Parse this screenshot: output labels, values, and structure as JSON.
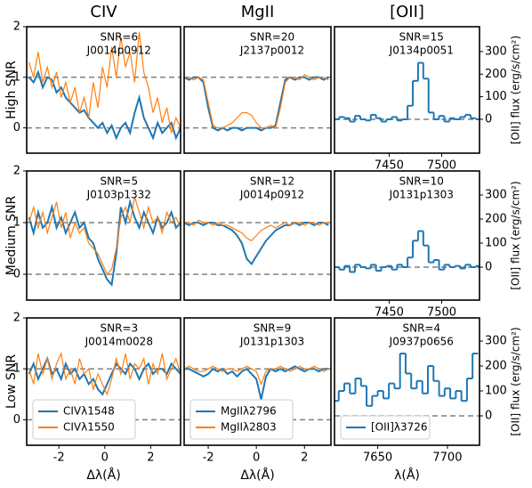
{
  "chart_data": [
    {
      "type": "line",
      "title": "CIV",
      "ylabel": "High SNR",
      "annotations": [
        "SNR=6",
        "J0014p0912"
      ],
      "xlim": [
        -3.4,
        3.3
      ],
      "ylim": [
        -0.5,
        2
      ],
      "yticks": [
        0,
        1,
        2
      ],
      "hlines": [
        0,
        1
      ],
      "x": [
        -3.3,
        -3.1,
        -2.9,
        -2.7,
        -2.5,
        -2.3,
        -2.1,
        -1.9,
        -1.7,
        -1.5,
        -1.3,
        -1.1,
        -0.9,
        -0.7,
        -0.5,
        -0.3,
        -0.1,
        0.1,
        0.3,
        0.5,
        0.7,
        0.9,
        1.1,
        1.3,
        1.5,
        1.7,
        1.9,
        2.1,
        2.3,
        2.5,
        2.7,
        2.9,
        3.1,
        3.3
      ],
      "series": [
        {
          "color": "#1f77b4",
          "values": [
            1.0,
            0.9,
            1.1,
            0.8,
            1.0,
            0.95,
            0.7,
            0.8,
            0.6,
            0.5,
            0.4,
            0.3,
            0.35,
            0.2,
            0.1,
            0.0,
            0.1,
            -0.1,
            0.05,
            -0.2,
            0.0,
            0.1,
            -0.1,
            0.3,
            0.6,
            0.2,
            0.0,
            -0.2,
            0.1,
            -0.1,
            0.0,
            0.1,
            -0.2,
            0.0
          ]
        },
        {
          "color": "#ff7f0e",
          "values": [
            1.3,
            1.0,
            1.5,
            0.9,
            1.2,
            0.8,
            1.1,
            0.6,
            0.9,
            0.5,
            0.8,
            0.3,
            0.6,
            0.2,
            0.9,
            0.4,
            1.2,
            0.8,
            1.6,
            1.0,
            1.8,
            1.2,
            1.5,
            0.9,
            1.9,
            1.1,
            0.8,
            0.3,
            0.6,
            0.1,
            0.4,
            -0.1,
            0.2,
            0.0
          ]
        }
      ]
    },
    {
      "type": "line",
      "title": "MgII",
      "annotations": [
        "SNR=20",
        "J2137p0012"
      ],
      "xlim": [
        -3,
        3.1
      ],
      "ylim": [
        -0.5,
        2
      ],
      "hlines": [
        0,
        1
      ],
      "x": [
        -3.0,
        -2.8,
        -2.6,
        -2.4,
        -2.2,
        -2.0,
        -1.8,
        -1.6,
        -1.4,
        -1.2,
        -1.0,
        -0.8,
        -0.6,
        -0.4,
        -0.2,
        0.0,
        0.2,
        0.4,
        0.6,
        0.8,
        1.0,
        1.2,
        1.4,
        1.6,
        1.8,
        2.0,
        2.2,
        2.4,
        2.6,
        2.8,
        3.0
      ],
      "series": [
        {
          "color": "#1f77b4",
          "values": [
            1.0,
            0.95,
            1.0,
            1.0,
            0.9,
            0.4,
            0.0,
            -0.05,
            0.0,
            -0.05,
            0.0,
            0.0,
            -0.05,
            0.0,
            0.0,
            0.0,
            -0.05,
            0.0,
            0.0,
            0.05,
            0.5,
            0.95,
            1.0,
            0.95,
            1.0,
            1.0,
            0.95,
            1.0,
            1.0,
            0.95,
            1.0
          ]
        },
        {
          "color": "#ff7f0e",
          "values": [
            1.0,
            1.0,
            0.95,
            1.0,
            0.95,
            0.5,
            0.05,
            0.0,
            0.0,
            0.05,
            0.1,
            0.2,
            0.3,
            0.3,
            0.25,
            0.1,
            0.0,
            0.0,
            0.05,
            0.0,
            0.4,
            0.9,
            1.0,
            1.0,
            0.95,
            1.05,
            1.0,
            0.95,
            1.0,
            1.0,
            0.95
          ]
        }
      ]
    },
    {
      "type": "step",
      "title": "[OII]",
      "ylabel": "[OII] flux (erg/s/cm²)",
      "annotations": [
        "SNR=15",
        "J0134p0051"
      ],
      "xlim": [
        7398,
        7536
      ],
      "xticks": [
        7450,
        7500
      ],
      "ylim": [
        -150,
        410
      ],
      "yticks": [
        0,
        100,
        200,
        300
      ],
      "hlines": [
        0
      ],
      "x": [
        7400,
        7405,
        7410,
        7415,
        7420,
        7425,
        7430,
        7435,
        7440,
        7445,
        7450,
        7455,
        7460,
        7465,
        7470,
        7475,
        7480,
        7485,
        7490,
        7495,
        7500,
        7505,
        7510,
        7515,
        7520,
        7525,
        7530,
        7535
      ],
      "series": [
        {
          "color": "#1f77b4",
          "values": [
            0,
            10,
            5,
            -10,
            15,
            0,
            -5,
            20,
            5,
            -10,
            0,
            10,
            -5,
            0,
            60,
            170,
            250,
            180,
            30,
            0,
            15,
            -10,
            5,
            0,
            10,
            20,
            5,
            0
          ]
        }
      ]
    },
    {
      "type": "line",
      "ylabel": "Medium SNR",
      "annotations": [
        "SNR=5",
        "J0103p1332"
      ],
      "xlim": [
        -3.4,
        3.3
      ],
      "ylim": [
        -0.5,
        2
      ],
      "yticks": [
        0,
        1,
        2
      ],
      "hlines": [
        0,
        1
      ],
      "x": [
        -3.3,
        -3.1,
        -2.9,
        -2.7,
        -2.5,
        -2.3,
        -2.1,
        -1.9,
        -1.7,
        -1.5,
        -1.3,
        -1.1,
        -0.9,
        -0.7,
        -0.5,
        -0.3,
        -0.1,
        0.1,
        0.3,
        0.5,
        0.7,
        0.9,
        1.1,
        1.3,
        1.5,
        1.7,
        1.9,
        2.1,
        2.3,
        2.5,
        2.7,
        2.9,
        3.1,
        3.3
      ],
      "series": [
        {
          "color": "#1f77b4",
          "values": [
            1.1,
            0.8,
            1.2,
            0.9,
            1.0,
            1.3,
            0.9,
            1.1,
            0.8,
            1.0,
            1.2,
            0.9,
            1.0,
            0.7,
            0.6,
            0.3,
            0.1,
            -0.1,
            -0.2,
            0.4,
            1.3,
            1.0,
            1.4,
            1.1,
            0.9,
            1.2,
            1.0,
            0.8,
            1.1,
            0.9,
            1.0,
            1.2,
            0.9,
            1.0
          ]
        },
        {
          "color": "#ff7f0e",
          "values": [
            1.0,
            1.3,
            0.9,
            1.2,
            0.8,
            1.1,
            1.4,
            0.9,
            1.2,
            0.7,
            1.0,
            0.8,
            0.9,
            0.6,
            0.5,
            0.4,
            0.2,
            0.0,
            0.1,
            0.5,
            1.1,
            1.3,
            1.0,
            1.5,
            1.2,
            0.9,
            1.3,
            1.0,
            1.1,
            0.8,
            1.2,
            1.0,
            1.1,
            0.9
          ]
        }
      ]
    },
    {
      "type": "line",
      "annotations": [
        "SNR=12",
        "J0014p0912"
      ],
      "xlim": [
        -3,
        3.1
      ],
      "ylim": [
        -0.5,
        2
      ],
      "hlines": [
        0,
        1
      ],
      "x": [
        -3.0,
        -2.8,
        -2.6,
        -2.4,
        -2.2,
        -2.0,
        -1.8,
        -1.6,
        -1.4,
        -1.2,
        -1.0,
        -0.8,
        -0.6,
        -0.4,
        -0.2,
        0.0,
        0.2,
        0.4,
        0.6,
        0.8,
        1.0,
        1.2,
        1.4,
        1.6,
        1.8,
        2.0,
        2.2,
        2.4,
        2.6,
        2.8,
        3.0
      ],
      "series": [
        {
          "color": "#1f77b4",
          "values": [
            1.0,
            0.95,
            1.0,
            1.0,
            0.95,
            1.0,
            1.0,
            0.95,
            0.95,
            0.9,
            0.85,
            0.75,
            0.6,
            0.3,
            0.2,
            0.35,
            0.5,
            0.65,
            0.75,
            0.85,
            0.9,
            0.95,
            0.95,
            1.0,
            0.95,
            1.0,
            1.0,
            0.95,
            1.0,
            1.0,
            0.95
          ]
        },
        {
          "color": "#ff7f0e",
          "values": [
            1.0,
            1.0,
            0.95,
            1.05,
            1.0,
            1.0,
            0.95,
            1.0,
            0.95,
            0.95,
            0.9,
            0.85,
            0.8,
            0.7,
            0.65,
            0.75,
            0.85,
            0.9,
            0.95,
            0.9,
            0.95,
            1.0,
            0.95,
            1.0,
            1.0,
            0.95,
            1.0,
            1.0,
            0.95,
            1.0,
            1.0
          ]
        }
      ]
    },
    {
      "type": "step",
      "ylabel": "[OII] flux (erg/s/cm²)",
      "annotations": [
        "SNR=10",
        "J0131p1303"
      ],
      "xlim": [
        7398,
        7536
      ],
      "xticks": [
        7450,
        7500
      ],
      "ylim": [
        -137,
        400
      ],
      "yticks": [
        0,
        100,
        200,
        300
      ],
      "hlines": [
        0
      ],
      "x": [
        7400,
        7405,
        7410,
        7415,
        7420,
        7425,
        7430,
        7435,
        7440,
        7445,
        7450,
        7455,
        7460,
        7465,
        7470,
        7475,
        7480,
        7485,
        7490,
        7495,
        7500,
        7505,
        7510,
        7515,
        7520,
        7525,
        7530,
        7535
      ],
      "series": [
        {
          "color": "#1f77b4",
          "values": [
            0,
            -10,
            5,
            -20,
            10,
            0,
            -5,
            10,
            -15,
            0,
            5,
            -10,
            10,
            0,
            40,
            110,
            150,
            90,
            20,
            30,
            -10,
            10,
            0,
            5,
            -5,
            10,
            0,
            5
          ]
        }
      ]
    },
    {
      "type": "line",
      "ylabel": "Low SNR",
      "xlabel": "Δλ(Å)",
      "annotations": [
        "SNR=3",
        "J0014m0028"
      ],
      "legend": "lower left",
      "xlim": [
        -3.4,
        3.3
      ],
      "xticks": [
        -2,
        0,
        2
      ],
      "ylim": [
        -0.5,
        2
      ],
      "yticks": [
        0,
        1,
        2
      ],
      "hlines": [
        0,
        1
      ],
      "x": [
        -3.3,
        -3.1,
        -2.9,
        -2.7,
        -2.5,
        -2.3,
        -2.1,
        -1.9,
        -1.7,
        -1.5,
        -1.3,
        -1.1,
        -0.9,
        -0.7,
        -0.5,
        -0.3,
        -0.1,
        0.1,
        0.3,
        0.5,
        0.7,
        0.9,
        1.1,
        1.3,
        1.5,
        1.7,
        1.9,
        2.1,
        2.3,
        2.5,
        2.7,
        2.9,
        3.1,
        3.3
      ],
      "series": [
        {
          "name": "CIVλ1548",
          "color": "#1f77b4",
          "values": [
            0.9,
            1.1,
            0.8,
            1.0,
            1.2,
            0.9,
            1.0,
            0.8,
            1.1,
            0.9,
            1.0,
            0.8,
            0.9,
            0.7,
            0.8,
            0.6,
            0.5,
            0.7,
            0.9,
            1.1,
            1.0,
            0.9,
            1.1,
            1.0,
            0.8,
            1.0,
            1.1,
            0.9,
            1.0,
            1.0,
            0.9,
            1.1,
            1.0,
            0.9
          ]
        },
        {
          "name": "CIVλ1550",
          "color": "#ff7f0e",
          "values": [
            1.0,
            0.7,
            1.3,
            0.9,
            1.2,
            0.8,
            1.1,
            1.3,
            0.8,
            1.0,
            0.7,
            1.2,
            0.9,
            1.0,
            0.6,
            0.9,
            0.7,
            0.5,
            0.8,
            1.2,
            0.9,
            1.3,
            0.8,
            1.1,
            1.0,
            1.2,
            0.7,
            1.1,
            0.9,
            1.3,
            0.8,
            1.0,
            1.2,
            0.9
          ]
        }
      ]
    },
    {
      "type": "line",
      "xlabel": "Δλ(Å)",
      "annotations": [
        "SNR=9",
        "J0131p1303"
      ],
      "legend": "lower left",
      "xlim": [
        -3,
        3.1
      ],
      "xticks": [
        -2,
        0,
        2
      ],
      "ylim": [
        -0.5,
        2
      ],
      "hlines": [
        0,
        1
      ],
      "x": [
        -3.0,
        -2.8,
        -2.6,
        -2.4,
        -2.2,
        -2.0,
        -1.8,
        -1.6,
        -1.4,
        -1.2,
        -1.0,
        -0.8,
        -0.6,
        -0.4,
        -0.2,
        0.0,
        0.2,
        0.4,
        0.6,
        0.8,
        1.0,
        1.2,
        1.4,
        1.6,
        1.8,
        2.0,
        2.2,
        2.4,
        2.6,
        2.8,
        3.0
      ],
      "series": [
        {
          "name": "MgIIλ2796",
          "color": "#1f77b4",
          "values": [
            1.0,
            1.0,
            0.95,
            0.9,
            0.85,
            0.9,
            1.0,
            0.95,
            1.0,
            0.9,
            0.95,
            0.85,
            0.95,
            1.0,
            0.9,
            0.8,
            0.4,
            0.85,
            1.0,
            0.95,
            1.0,
            0.95,
            1.0,
            1.05,
            1.0,
            0.95,
            1.0,
            1.0,
            0.95,
            1.0,
            1.0
          ]
        },
        {
          "name": "MgIIλ2803",
          "color": "#ff7f0e",
          "values": [
            1.0,
            1.05,
            1.0,
            0.95,
            0.95,
            1.0,
            1.05,
            1.0,
            0.95,
            1.0,
            1.0,
            0.95,
            1.0,
            1.05,
            1.0,
            0.95,
            0.7,
            0.95,
            1.0,
            1.0,
            1.05,
            1.0,
            0.95,
            1.0,
            1.05,
            1.0,
            1.0,
            1.05,
            1.0,
            0.95,
            1.0
          ]
        }
      ]
    },
    {
      "type": "step",
      "ylabel": "[OII] flux (erg/s/cm²)",
      "xlabel": "λ(Å)",
      "annotations": [
        "SNR=4",
        "J0937p0656"
      ],
      "legend": "lower left",
      "xlim": [
        7619,
        7723
      ],
      "xticks": [
        7650,
        7700
      ],
      "ylim": [
        -118,
        393
      ],
      "yticks": [
        0,
        100,
        200,
        300
      ],
      "hlines": [
        0
      ],
      "x": [
        7620,
        7624,
        7628,
        7632,
        7636,
        7640,
        7644,
        7648,
        7652,
        7656,
        7660,
        7664,
        7668,
        7672,
        7676,
        7680,
        7684,
        7688,
        7692,
        7696,
        7700,
        7704,
        7708,
        7712,
        7716,
        7720
      ],
      "series": [
        {
          "name": "[OII]λ3726",
          "color": "#1f77b4",
          "values": [
            60,
            100,
            130,
            90,
            150,
            120,
            40,
            80,
            100,
            70,
            130,
            110,
            250,
            170,
            110,
            140,
            90,
            200,
            140,
            80,
            110,
            70,
            100,
            60,
            150,
            250
          ]
        }
      ]
    }
  ]
}
